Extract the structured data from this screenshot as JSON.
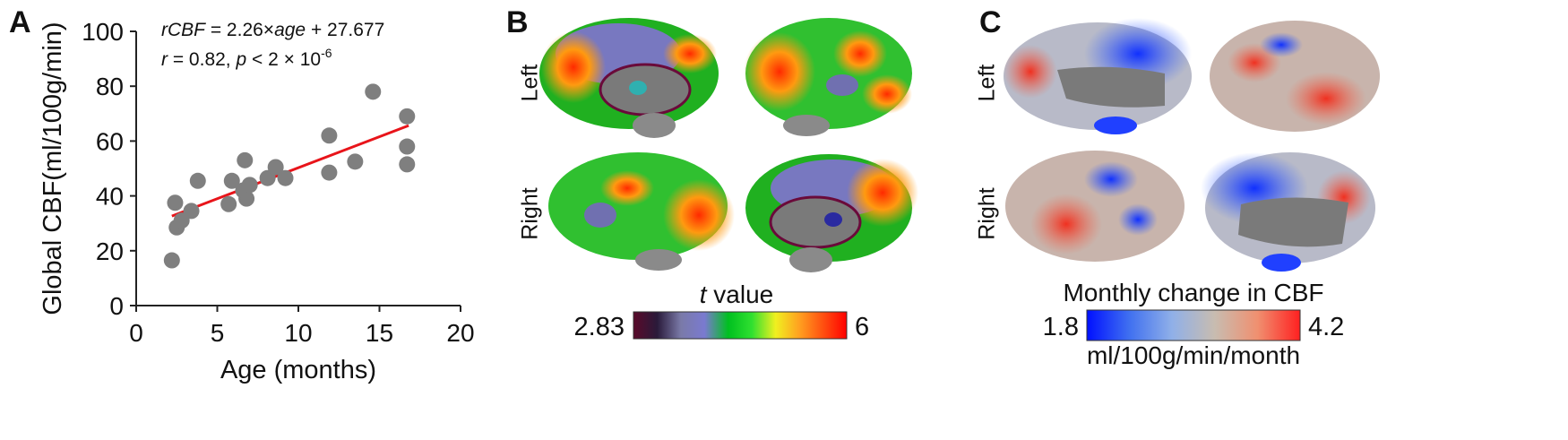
{
  "panel_labels": {
    "a": "A",
    "b": "B",
    "c": "C"
  },
  "colors": {
    "point": "#7f7f7f",
    "fit_line": "#e8141a",
    "axis": "#222222"
  },
  "chart_data": {
    "type": "scatter",
    "xlabel": "Age (months)",
    "ylabel": "Global CBF(ml/100g/min)",
    "xlim": [
      0,
      20
    ],
    "ylim": [
      0,
      100
    ],
    "xticks": [
      0,
      5,
      10,
      15,
      20
    ],
    "yticks": [
      0,
      20,
      40,
      60,
      80,
      100
    ],
    "equation": {
      "lhs": "rCBF",
      "mid": " = 2.26×",
      "var": "age",
      "rhs": " + 27.677"
    },
    "stats": {
      "r_sym": "r",
      "r_text": " = 0.82, ",
      "p_sym": "p",
      "p_text": " < 2 × 10",
      "p_exp": "-6"
    },
    "fit": {
      "slope": 2.26,
      "intercept": 27.677,
      "x_range": [
        2.2,
        16.8
      ]
    },
    "points": [
      {
        "x": 2.2,
        "y": 16.5
      },
      {
        "x": 2.4,
        "y": 37.5
      },
      {
        "x": 2.5,
        "y": 28.5
      },
      {
        "x": 2.8,
        "y": 31
      },
      {
        "x": 3.4,
        "y": 34.5
      },
      {
        "x": 3.8,
        "y": 45.5
      },
      {
        "x": 5.7,
        "y": 37
      },
      {
        "x": 5.9,
        "y": 45.5
      },
      {
        "x": 6.6,
        "y": 42
      },
      {
        "x": 6.7,
        "y": 53
      },
      {
        "x": 6.8,
        "y": 39
      },
      {
        "x": 7.0,
        "y": 44
      },
      {
        "x": 8.1,
        "y": 46.5
      },
      {
        "x": 8.6,
        "y": 50.5
      },
      {
        "x": 9.2,
        "y": 46.5
      },
      {
        "x": 11.9,
        "y": 62
      },
      {
        "x": 11.9,
        "y": 48.5
      },
      {
        "x": 13.5,
        "y": 52.5
      },
      {
        "x": 14.6,
        "y": 78
      },
      {
        "x": 16.7,
        "y": 69
      },
      {
        "x": 16.7,
        "y": 58
      },
      {
        "x": 16.7,
        "y": 51.5
      }
    ]
  },
  "panel_b": {
    "row_labels": [
      "Left",
      "Right"
    ],
    "colorbar": {
      "title_var": "t",
      "title_rest": " value",
      "min": "2.83",
      "max": "6",
      "stops": [
        "#5a0a2a",
        "#2a1a3a",
        "#7a7aa8",
        "#7a7ad0",
        "#00c020",
        "#30e030",
        "#f0f020",
        "#ffa020",
        "#ff5010",
        "#ff0000"
      ]
    }
  },
  "panel_c": {
    "row_labels": [
      "Left",
      "Right"
    ],
    "colorbar": {
      "title": "Monthly change in CBF",
      "min": "1.8",
      "max": "4.2",
      "unit": "ml/100g/min/month",
      "stops": [
        "#0010ff",
        "#4070f0",
        "#90b0e8",
        "#c8bcb0",
        "#f09070",
        "#ff2020"
      ]
    }
  }
}
